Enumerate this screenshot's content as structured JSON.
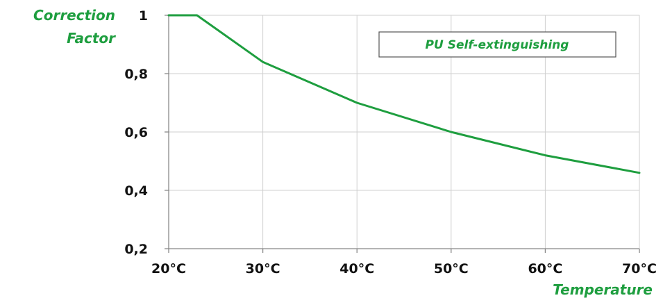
{
  "chart_data": {
    "type": "line",
    "ylabel_lines": [
      "Correction",
      "Factor"
    ],
    "xlabel": "Temperature",
    "legend": {
      "label": "PU Self-extinguishing",
      "placement": "top-right"
    },
    "x_categories": [
      "20°C",
      "30°C",
      "40°C",
      "50°C",
      "60°C",
      "70°C"
    ],
    "x_values": [
      20,
      30,
      40,
      50,
      60,
      70
    ],
    "xlim": [
      20,
      70
    ],
    "y_ticks": [
      {
        "value": 0.2,
        "label": "0,2"
      },
      {
        "value": 0.4,
        "label": "0,4"
      },
      {
        "value": 0.6,
        "label": "0,6"
      },
      {
        "value": 0.8,
        "label": "0,8"
      },
      {
        "value": 1.0,
        "label": "1"
      }
    ],
    "ylim": [
      0.2,
      1.0
    ],
    "grid": true,
    "series": [
      {
        "color": "#1e9e3f",
        "points": [
          {
            "x": 20,
            "y": 1.0
          },
          {
            "x": 23,
            "y": 1.0
          },
          {
            "x": 30,
            "y": 0.84
          },
          {
            "x": 40,
            "y": 0.7
          },
          {
            "x": 50,
            "y": 0.6
          },
          {
            "x": 60,
            "y": 0.52
          },
          {
            "x": 70,
            "y": 0.46
          }
        ]
      }
    ],
    "colors": {
      "accent": "#1e9e3f",
      "grid": "#cfcfcf",
      "axis": "#888888",
      "text": "#111111"
    }
  }
}
